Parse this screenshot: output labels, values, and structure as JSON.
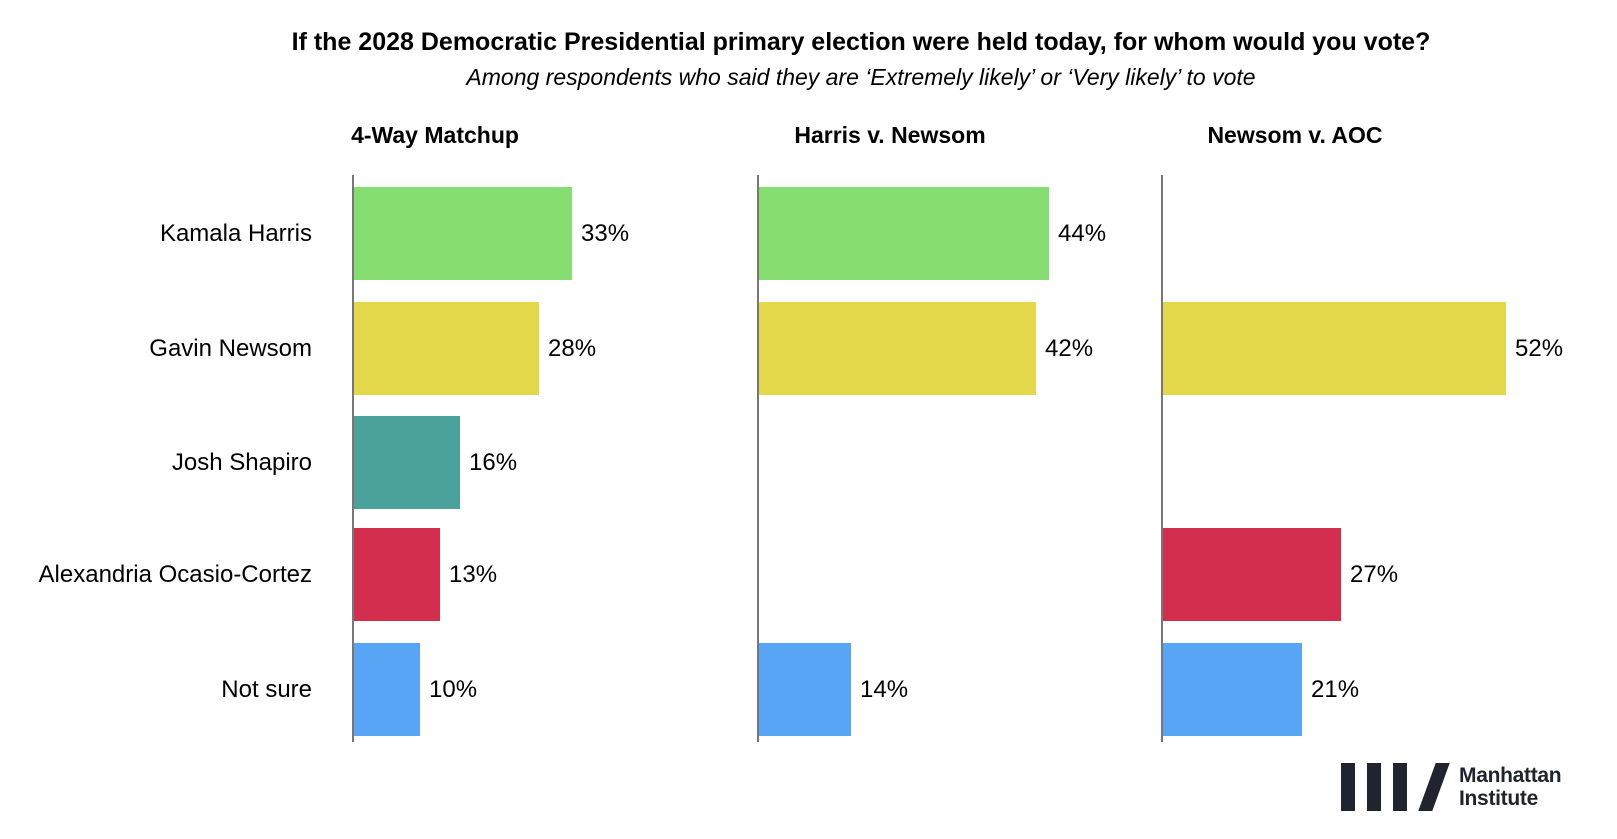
{
  "chart_data": {
    "type": "bar",
    "orientation": "horizontal",
    "title": "If the 2028 Democratic Presidential primary election were held today, for whom would you vote?",
    "subtitle": "Among respondents who said they are ‘Extremely likely’ or ‘Very likely’ to vote",
    "categories": [
      "Kamala Harris",
      "Gavin Newsom",
      "Josh Shapiro",
      "Alexandria Ocasio-Cortez",
      "Not sure"
    ],
    "colors": {
      "Kamala Harris": "#85DE6F",
      "Gavin Newsom": "#E3D84A",
      "Josh Shapiro": "#4AA29B",
      "Alexandria Ocasio-Cortez": "#D32E4E",
      "Not sure": "#57A5F4"
    },
    "axis_color": "#777777",
    "unit": "%",
    "value_range": [
      0,
      60
    ],
    "grid": false,
    "legend": "none",
    "panels": [
      {
        "title": "4-Way Matchup",
        "values": [
          33,
          28,
          16,
          13,
          10
        ]
      },
      {
        "title": "Harris v. Newsom",
        "values": [
          44,
          42,
          null,
          null,
          14
        ]
      },
      {
        "title": "Newsom v. AOC",
        "values": [
          null,
          52,
          null,
          27,
          21
        ]
      }
    ]
  },
  "branding": {
    "name": "Manhattan Institute",
    "line1": "Manhattan",
    "line2": "Institute",
    "color": "#20242F"
  }
}
